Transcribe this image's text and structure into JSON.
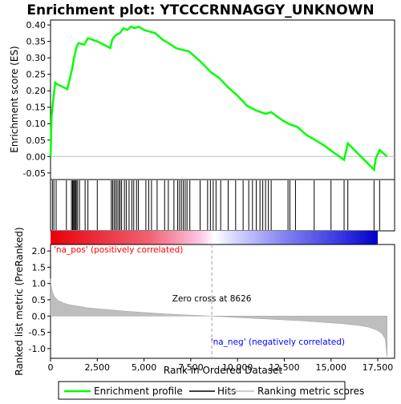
{
  "chart_data": {
    "type": "line",
    "title": "Enrichment plot: YTCCCRNNAGGY_UNKNOWN",
    "xlabel": "Rank in Ordered Dataset",
    "ylabel_top": "Enrichment score (ES)",
    "ylabel_bottom": "Ranked list metric (PreRanked)",
    "x_ticks": [
      "0",
      "2,500",
      "5,000",
      "7,500",
      "10,000",
      "12,500",
      "15,000",
      "17,500"
    ],
    "x_tick_values": [
      0,
      2500,
      5000,
      7500,
      10000,
      12500,
      15000,
      17500
    ],
    "es_y_ticks": [
      "-0.05",
      "0.00",
      "0.05",
      "0.10",
      "0.15",
      "0.20",
      "0.25",
      "0.30",
      "0.35",
      "0.40"
    ],
    "es_y_tick_values": [
      -0.05,
      0,
      0.05,
      0.1,
      0.15,
      0.2,
      0.25,
      0.3,
      0.35,
      0.4
    ],
    "metric_y_ticks": [
      "-1.0",
      "-0.5",
      "0.0",
      "0.5",
      "1.0",
      "1.5",
      "2.0"
    ],
    "metric_y_tick_values": [
      -1.0,
      -0.5,
      0,
      0.5,
      1.0,
      1.5,
      2.0
    ],
    "xlim": [
      0,
      18400
    ],
    "es_ylim": [
      -0.07,
      0.415
    ],
    "metric_ylim": [
      -1.3,
      2.2
    ],
    "legend_position": "bottom",
    "legend": [
      "Enrichment profile",
      "Hits",
      "Ranking metric scores"
    ],
    "enrichment_series": {
      "name": "Enrichment profile",
      "color": "#00ff00",
      "x": [
        0,
        60,
        150,
        250,
        350,
        900,
        1150,
        1200,
        1250,
        1300,
        1400,
        1500,
        1800,
        2000,
        2500,
        3200,
        3300,
        3500,
        3700,
        3900,
        4100,
        4300,
        4500,
        4700,
        5000,
        5300,
        5600,
        6000,
        6300,
        6700,
        7000,
        7400,
        8000,
        8600,
        9000,
        9500,
        10000,
        10500,
        11000,
        11500,
        11800,
        12400,
        12800,
        13200,
        13700,
        14100,
        14600,
        15000,
        15700,
        15900,
        17300,
        17400,
        17600,
        18000
      ],
      "y": [
        0.0,
        0.125,
        0.175,
        0.225,
        0.22,
        0.205,
        0.265,
        0.28,
        0.3,
        0.31,
        0.335,
        0.345,
        0.34,
        0.36,
        0.35,
        0.33,
        0.355,
        0.37,
        0.375,
        0.39,
        0.385,
        0.395,
        0.39,
        0.395,
        0.385,
        0.38,
        0.375,
        0.355,
        0.345,
        0.33,
        0.325,
        0.32,
        0.29,
        0.255,
        0.24,
        0.21,
        0.185,
        0.155,
        0.14,
        0.13,
        0.135,
        0.11,
        0.098,
        0.09,
        0.065,
        0.052,
        0.035,
        0.018,
        -0.01,
        0.04,
        -0.04,
        -0.005,
        0.02,
        0.0
      ]
    },
    "hits_x": [
      100,
      180,
      300,
      850,
      1120,
      1180,
      1230,
      1280,
      1330,
      1380,
      1450,
      1550,
      1850,
      2000,
      2500,
      3250,
      3320,
      3400,
      3480,
      3560,
      3650,
      3720,
      3800,
      3950,
      4050,
      4200,
      4350,
      4450,
      4600,
      4700,
      5100,
      5250,
      5400,
      5700,
      6100,
      6300,
      6600,
      6800,
      6900,
      7000,
      7100,
      7200,
      7300,
      7450,
      8000,
      8400,
      8550,
      8700,
      8850,
      9100,
      9500,
      9900,
      10300,
      10600,
      10800,
      11000,
      11200,
      11350,
      11500,
      11650,
      11800,
      12700,
      12800,
      13100,
      14100,
      15000,
      15700,
      15900,
      17300,
      17600
    ],
    "zero_cross_label": "Zero cross at 8626",
    "zero_cross_x": 8626,
    "pos_label": "'na_pos' (positively correlated)",
    "neg_label": "'na_neg' (negatively correlated)",
    "metric_profile": {
      "name": "Ranking metric scores",
      "x": [
        0,
        30,
        100,
        200,
        400,
        700,
        1000,
        1500,
        2000,
        3000,
        4000,
        5000,
        6000,
        7000,
        8000,
        8626,
        9500,
        10500,
        11500,
        12500,
        13500,
        14500,
        15500,
        16500,
        17000,
        17400,
        17700,
        17900,
        18000
      ],
      "y": [
        1.15,
        0.95,
        0.75,
        0.6,
        0.48,
        0.4,
        0.35,
        0.3,
        0.25,
        0.2,
        0.15,
        0.11,
        0.07,
        0.04,
        0.015,
        0.0,
        -0.03,
        -0.06,
        -0.09,
        -0.12,
        -0.15,
        -0.19,
        -0.23,
        -0.29,
        -0.34,
        -0.42,
        -0.52,
        -0.7,
        -1.25
      ]
    },
    "colors": {
      "enrichment": "#00ff00",
      "hits": "#000000",
      "metric_fill": "#bebebe",
      "zero_line": "#bebebe",
      "pos_text": "#ff0000",
      "neg_text": "#0000ff",
      "bar_positive": "#ff0000",
      "bar_negative": "#0000ff"
    }
  }
}
